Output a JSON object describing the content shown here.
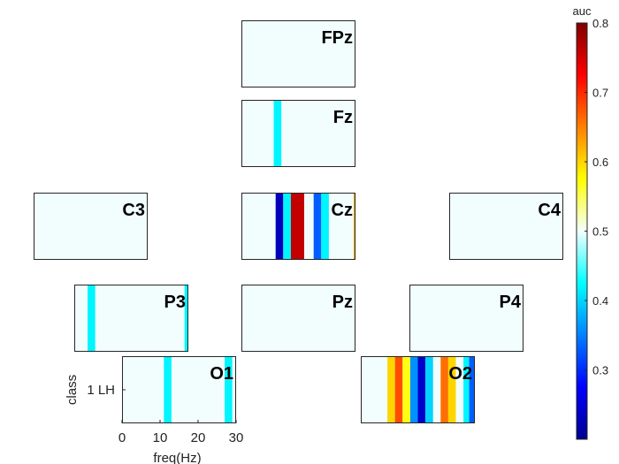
{
  "chart_data": {
    "type": "heatmap",
    "colorbar": {
      "label": "auc",
      "range": [
        0.2,
        0.8
      ],
      "ticks": [
        "0.3",
        "0.4",
        "0.5",
        "0.6",
        "0.7",
        "0.8"
      ],
      "colormap": "jet"
    },
    "x_range": [
      0,
      30
    ],
    "x_ticks": [
      "0",
      "10",
      "20",
      "30"
    ],
    "xlabel": "freq(Hz)",
    "ylabel": "class",
    "y_tick": "1 LH",
    "channels": [
      {
        "name": "FPz",
        "bands": []
      },
      {
        "name": "Fz",
        "bands": [
          {
            "from": 8.5,
            "to": 10.5,
            "auc": 0.42
          }
        ]
      },
      {
        "name": "C3",
        "bands": []
      },
      {
        "name": "Cz",
        "bands": [
          {
            "from": 9.0,
            "to": 11.0,
            "auc": 0.23
          },
          {
            "from": 11.0,
            "to": 13.0,
            "auc": 0.42
          },
          {
            "from": 13.0,
            "to": 16.5,
            "auc": 0.76
          },
          {
            "from": 19.0,
            "to": 21.0,
            "auc": 0.33
          },
          {
            "from": 21.0,
            "to": 23.0,
            "auc": 0.42
          },
          {
            "from": 29.5,
            "to": 30.0,
            "auc": 0.62
          }
        ]
      },
      {
        "name": "C4",
        "bands": []
      },
      {
        "name": "P3",
        "bands": [
          {
            "from": 3.5,
            "to": 5.5,
            "auc": 0.42
          },
          {
            "from": 29.0,
            "to": 30.0,
            "auc": 0.42
          }
        ]
      },
      {
        "name": "Pz",
        "bands": []
      },
      {
        "name": "P4",
        "bands": []
      },
      {
        "name": "O1",
        "bands": [
          {
            "from": 11.0,
            "to": 13.0,
            "auc": 0.42
          },
          {
            "from": 27.0,
            "to": 29.0,
            "auc": 0.42
          }
        ]
      },
      {
        "name": "O2",
        "bands": [
          {
            "from": 7.0,
            "to": 9.0,
            "auc": 0.6
          },
          {
            "from": 9.0,
            "to": 11.0,
            "auc": 0.68
          },
          {
            "from": 11.0,
            "to": 13.0,
            "auc": 0.57
          },
          {
            "from": 13.0,
            "to": 15.0,
            "auc": 0.36
          },
          {
            "from": 15.0,
            "to": 17.0,
            "auc": 0.24
          },
          {
            "from": 17.0,
            "to": 19.0,
            "auc": 0.4
          },
          {
            "from": 21.0,
            "to": 23.0,
            "auc": 0.66
          },
          {
            "from": 23.0,
            "to": 25.0,
            "auc": 0.6
          },
          {
            "from": 27.0,
            "to": 28.5,
            "auc": 0.42
          },
          {
            "from": 28.5,
            "to": 30.0,
            "auc": 0.33
          }
        ]
      }
    ]
  }
}
